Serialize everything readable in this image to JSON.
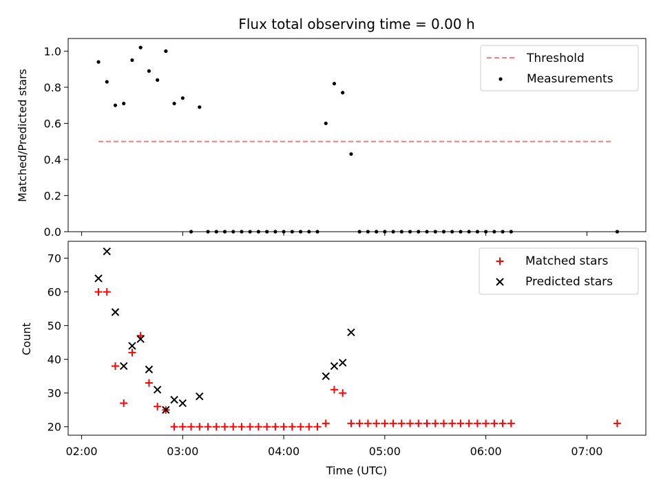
{
  "chart_data": [
    {
      "type": "scatter",
      "title": "Flux total observing time = 0.00 h",
      "xlabel": "",
      "ylabel": "Matched/Predicted stars",
      "ylim": [
        0,
        1.07
      ],
      "xlim": [
        "01:52",
        "07:35"
      ],
      "y_ticks": [
        "0.0",
        "0.2",
        "0.4",
        "0.6",
        "0.8",
        "1.0"
      ],
      "legend": "top-right",
      "series": [
        {
          "name": "Threshold",
          "style": "dashed-line",
          "color": "#ff7a7a",
          "x": [
            "02:10",
            "07:15"
          ],
          "y": [
            0.5,
            0.5
          ]
        },
        {
          "name": "Measurements",
          "style": "dot",
          "color": "#000000",
          "x": [
            "02:10",
            "02:15",
            "02:20",
            "02:25",
            "02:30",
            "02:35",
            "02:40",
            "02:45",
            "02:50",
            "02:55",
            "03:00",
            "03:05",
            "03:10",
            "03:15",
            "03:20",
            "03:25",
            "03:30",
            "03:35",
            "03:40",
            "03:45",
            "03:50",
            "03:55",
            "04:00",
            "04:05",
            "04:10",
            "04:15",
            "04:20",
            "04:25",
            "04:30",
            "04:35",
            "04:40",
            "04:45",
            "04:50",
            "04:55",
            "05:00",
            "05:05",
            "05:10",
            "05:15",
            "05:20",
            "05:25",
            "05:30",
            "05:35",
            "05:40",
            "05:45",
            "05:50",
            "05:55",
            "06:00",
            "06:05",
            "06:10",
            "06:15",
            "07:18"
          ],
          "y": [
            0.94,
            0.83,
            0.7,
            0.71,
            0.95,
            1.02,
            0.89,
            0.84,
            1.0,
            0.71,
            0.74,
            0.0,
            0.69,
            0.0,
            0.0,
            0.0,
            0.0,
            0.0,
            0.0,
            0.0,
            0.0,
            0.0,
            0.0,
            0.0,
            0.0,
            0.0,
            0.0,
            0.6,
            0.82,
            0.77,
            0.43,
            0.0,
            0.0,
            0.0,
            0.0,
            0.0,
            0.0,
            0.0,
            0.0,
            0.0,
            0.0,
            0.0,
            0.0,
            0.0,
            0.0,
            0.0,
            0.0,
            0.0,
            0.0,
            0.0,
            0.0
          ]
        }
      ]
    },
    {
      "type": "scatter",
      "title": "",
      "xlabel": "Time (UTC)",
      "ylabel": "Count",
      "ylim": [
        17.5,
        75
      ],
      "xlim": [
        "01:52",
        "07:35"
      ],
      "x_ticks": [
        "02:00",
        "03:00",
        "04:00",
        "05:00",
        "06:00",
        "07:00"
      ],
      "y_ticks": [
        "20",
        "30",
        "40",
        "50",
        "60",
        "70"
      ],
      "legend": "top-right",
      "series": [
        {
          "name": "Matched stars",
          "marker": "+",
          "color": "#ff0000",
          "x": [
            "02:10",
            "02:15",
            "02:20",
            "02:25",
            "02:30",
            "02:35",
            "02:40",
            "02:45",
            "02:50",
            "02:55",
            "03:00",
            "03:05",
            "03:10",
            "03:15",
            "03:20",
            "03:25",
            "03:30",
            "03:35",
            "03:40",
            "03:45",
            "03:50",
            "03:55",
            "04:00",
            "04:05",
            "04:10",
            "04:15",
            "04:20",
            "04:25",
            "04:30",
            "04:35",
            "04:40",
            "04:45",
            "04:50",
            "04:55",
            "05:00",
            "05:05",
            "05:10",
            "05:15",
            "05:20",
            "05:25",
            "05:30",
            "05:35",
            "05:40",
            "05:45",
            "05:50",
            "05:55",
            "06:00",
            "06:05",
            "06:10",
            "06:15",
            "07:18"
          ],
          "y": [
            60,
            60,
            38,
            27,
            42,
            47,
            33,
            26,
            25,
            20,
            20,
            20,
            20,
            20,
            20,
            20,
            20,
            20,
            20,
            20,
            20,
            20,
            20,
            20,
            20,
            20,
            20,
            21,
            31,
            30,
            21,
            21,
            21,
            21,
            21,
            21,
            21,
            21,
            21,
            21,
            21,
            21,
            21,
            21,
            21,
            21,
            21,
            21,
            21,
            21,
            21
          ]
        },
        {
          "name": "Predicted stars",
          "marker": "x",
          "color": "#000000",
          "x": [
            "02:10",
            "02:15",
            "02:20",
            "02:25",
            "02:30",
            "02:35",
            "02:40",
            "02:45",
            "02:50",
            "02:55",
            "03:00",
            "03:10",
            "04:25",
            "04:30",
            "04:35",
            "04:40"
          ],
          "y": [
            64,
            72,
            54,
            38,
            44,
            46,
            37,
            31,
            25,
            28,
            27,
            29,
            35,
            38,
            39,
            48
          ]
        }
      ]
    }
  ]
}
